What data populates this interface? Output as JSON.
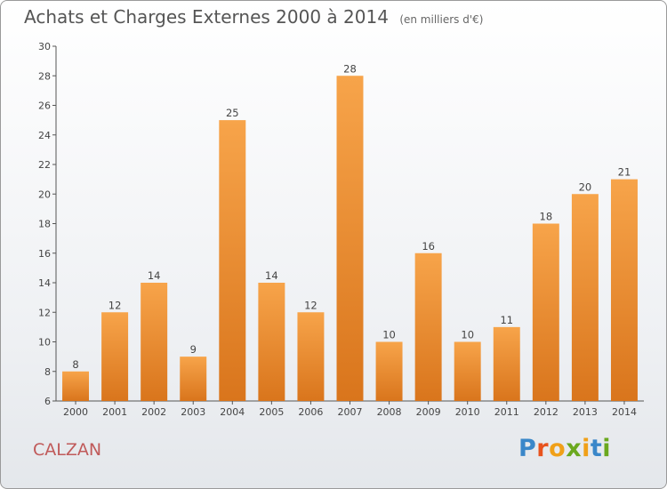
{
  "chart_data": {
    "type": "bar",
    "title": "Achats et Charges Externes 2000 à 2014",
    "subtitle": "(en milliers d'€)",
    "categories": [
      "2000",
      "2001",
      "2002",
      "2003",
      "2004",
      "2005",
      "2006",
      "2007",
      "2008",
      "2009",
      "2010",
      "2011",
      "2012",
      "2013",
      "2014"
    ],
    "values": [
      8,
      12,
      14,
      9,
      25,
      14,
      12,
      28,
      10,
      16,
      10,
      11,
      18,
      20,
      21
    ],
    "ylim": [
      6,
      30
    ],
    "yticks": [
      6,
      8,
      10,
      12,
      14,
      16,
      18,
      20,
      22,
      24,
      26,
      28,
      30
    ],
    "grid": false,
    "bar_color_top": "#f7a44a",
    "bar_color_bottom": "#d9751c"
  },
  "footer": {
    "commune": "CALZAN",
    "logo_letters": [
      "P",
      "r",
      "o",
      "x",
      "i",
      "t",
      "i"
    ],
    "logo_colors": [
      "#3a87c9",
      "#e8531e",
      "#f0a018",
      "#6aa81e",
      "#f0a018",
      "#3a87c9",
      "#6aa81e"
    ]
  }
}
